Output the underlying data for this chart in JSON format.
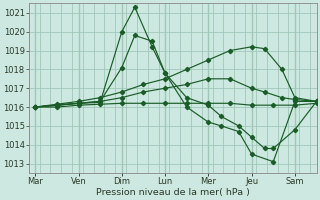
{
  "background_color": "#cde8e0",
  "grid_color": "#a0c8b8",
  "line_color": "#1a5c28",
  "marker_color": "#1a5c28",
  "xlabel": "Pression niveau de la mer( hPa )",
  "ylim": [
    1012.5,
    1021.5
  ],
  "yticks": [
    1013,
    1014,
    1015,
    1016,
    1017,
    1018,
    1019,
    1020,
    1021
  ],
  "day_positions": [
    0,
    1,
    2,
    3,
    4,
    5,
    6
  ],
  "day_labels": [
    "Mar",
    "Ven",
    "Dim",
    "Lun",
    "Mer",
    "Jeu",
    "Sam"
  ],
  "xlim": [
    -0.15,
    6.5
  ],
  "series": [
    {
      "x": [
        0.0,
        0.5,
        1.0,
        1.5,
        2.0,
        2.3,
        2.7,
        3.0,
        3.5,
        4.0,
        4.3,
        4.7,
        5.0,
        5.5,
        6.0,
        6.5
      ],
      "y": [
        1016.0,
        1016.1,
        1016.2,
        1016.25,
        1020.0,
        1021.3,
        1019.2,
        1017.8,
        1016.0,
        1015.2,
        1015.0,
        1014.7,
        1013.5,
        1013.1,
        1016.3,
        1016.3
      ]
    },
    {
      "x": [
        0.0,
        0.5,
        1.0,
        1.5,
        2.0,
        2.3,
        2.7,
        3.0,
        3.5,
        4.0,
        4.3,
        4.7,
        5.0,
        5.3,
        5.5,
        6.0,
        6.5
      ],
      "y": [
        1016.0,
        1016.1,
        1016.2,
        1016.3,
        1018.1,
        1019.8,
        1019.5,
        1017.8,
        1016.5,
        1016.1,
        1015.5,
        1015.0,
        1014.4,
        1013.8,
        1013.8,
        1014.8,
        1016.3
      ]
    },
    {
      "x": [
        0.0,
        0.5,
        1.0,
        1.5,
        2.0,
        2.5,
        3.0,
        3.5,
        4.0,
        4.5,
        5.0,
        5.3,
        5.7,
        6.0,
        6.5
      ],
      "y": [
        1016.0,
        1016.15,
        1016.3,
        1016.5,
        1016.8,
        1017.2,
        1017.5,
        1018.0,
        1018.5,
        1019.0,
        1019.2,
        1019.1,
        1018.0,
        1016.5,
        1016.3
      ]
    },
    {
      "x": [
        0.0,
        0.5,
        1.0,
        1.5,
        2.0,
        2.5,
        3.0,
        3.5,
        4.0,
        4.5,
        5.0,
        5.3,
        5.7,
        6.0,
        6.5
      ],
      "y": [
        1016.0,
        1016.1,
        1016.2,
        1016.3,
        1016.5,
        1016.8,
        1017.0,
        1017.2,
        1017.5,
        1017.5,
        1017.0,
        1016.8,
        1016.5,
        1016.4,
        1016.3
      ]
    },
    {
      "x": [
        0.0,
        0.5,
        1.0,
        1.5,
        2.0,
        2.5,
        3.0,
        3.5,
        4.0,
        4.5,
        5.0,
        5.5,
        6.0,
        6.5
      ],
      "y": [
        1016.0,
        1016.0,
        1016.1,
        1016.15,
        1016.2,
        1016.2,
        1016.2,
        1016.2,
        1016.2,
        1016.2,
        1016.1,
        1016.1,
        1016.1,
        1016.2
      ]
    }
  ]
}
